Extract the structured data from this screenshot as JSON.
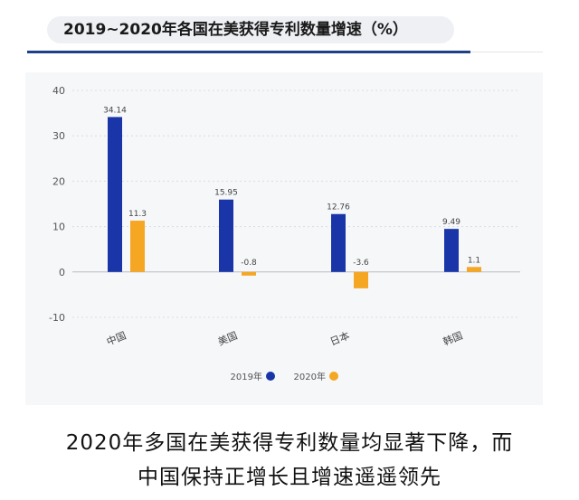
{
  "chart_data": {
    "type": "bar",
    "title": "2019~2020年各国在美获得专利数量增速（%）",
    "categories": [
      "中国",
      "美国",
      "日本",
      "韩国"
    ],
    "series": [
      {
        "name": "2019年",
        "values": [
          34.14,
          15.95,
          12.76,
          9.49
        ],
        "labels": [
          "34.14",
          "15.95",
          "12.76",
          "9.49"
        ],
        "color": "#1a35a8"
      },
      {
        "name": "2020年",
        "values": [
          11.3,
          -0.8,
          -3.6,
          1.1
        ],
        "labels": [
          "11.3",
          "-0.8",
          "-3.6",
          "1.1"
        ],
        "color": "#f5a623"
      }
    ],
    "yticks": [
      "40",
      "30",
      "20",
      "10",
      "0",
      "-10"
    ],
    "ylim": [
      -10,
      40
    ],
    "grid": true,
    "legend": "bottom"
  },
  "caption": {
    "line1": "2020年多国在美获得专利数量均显著下降，而",
    "line2": "中国保持正增长且增速遥遥领先"
  }
}
